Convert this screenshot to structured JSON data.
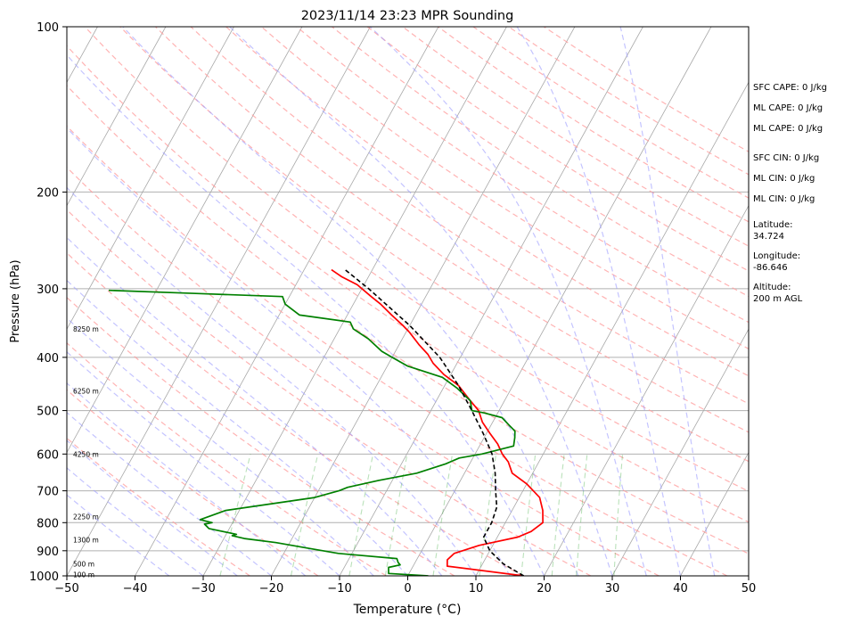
{
  "chart_data": {
    "type": "line",
    "title": "2023/11/14 23:23 MPR Sounding",
    "xlabel": "Temperature (°C)",
    "ylabel": "Pressure (hPa)",
    "xlim": [
      -50,
      50
    ],
    "ylim": [
      1000,
      100
    ],
    "y_scale": "log",
    "grid": true,
    "x_ticks": [
      "−50",
      "−40",
      "−30",
      "−20",
      "−10",
      "0",
      "10",
      "20",
      "30",
      "40",
      "50"
    ],
    "y_ticks": [
      "100",
      "200",
      "300",
      "400",
      "500",
      "600",
      "700",
      "800",
      "900",
      "1000"
    ],
    "height_labels": [
      "8250 m",
      "6250 m",
      "4250 m",
      "2250 m",
      "1300 m",
      "500 m",
      "100 m"
    ],
    "series": [
      {
        "color": "#ff0000",
        "points": [
          {
            "t": 17,
            "p": 1000
          },
          {
            "t": 5,
            "p": 960
          },
          {
            "t": 4.5,
            "p": 935
          },
          {
            "t": 5,
            "p": 910
          },
          {
            "t": 8,
            "p": 880
          },
          {
            "t": 13,
            "p": 850
          },
          {
            "t": 14.5,
            "p": 830
          },
          {
            "t": 15.5,
            "p": 800
          },
          {
            "t": 14.5,
            "p": 760
          },
          {
            "t": 13,
            "p": 720
          },
          {
            "t": 10,
            "p": 680
          },
          {
            "t": 7,
            "p": 650
          },
          {
            "t": 5.5,
            "p": 620
          },
          {
            "t": 4,
            "p": 600
          },
          {
            "t": 2.5,
            "p": 575
          },
          {
            "t": 0.5,
            "p": 550
          },
          {
            "t": -1.5,
            "p": 525
          },
          {
            "t": -3,
            "p": 500
          },
          {
            "t": -5,
            "p": 480
          },
          {
            "t": -8,
            "p": 450
          },
          {
            "t": -11,
            "p": 430
          },
          {
            "t": -13.5,
            "p": 410
          },
          {
            "t": -15,
            "p": 395
          },
          {
            "t": -17,
            "p": 380
          },
          {
            "t": -19.5,
            "p": 360
          },
          {
            "t": -21,
            "p": 350
          },
          {
            "t": -23.5,
            "p": 335
          },
          {
            "t": -26,
            "p": 320
          },
          {
            "t": -28,
            "p": 310
          },
          {
            "t": -31,
            "p": 295
          },
          {
            "t": -34,
            "p": 285
          },
          {
            "t": -36,
            "p": 277
          }
        ]
      },
      {
        "color": "#008000",
        "points": [
          {
            "t": 3,
            "p": 1000
          },
          {
            "t": -3,
            "p": 990
          },
          {
            "t": -3.5,
            "p": 965
          },
          {
            "t": -2,
            "p": 955
          },
          {
            "t": -2.5,
            "p": 945
          },
          {
            "t": -3,
            "p": 930
          },
          {
            "t": -12,
            "p": 910
          },
          {
            "t": -17,
            "p": 890
          },
          {
            "t": -22,
            "p": 870
          },
          {
            "t": -27,
            "p": 855
          },
          {
            "t": -29,
            "p": 845
          },
          {
            "t": -28.5,
            "p": 840
          },
          {
            "t": -33,
            "p": 820
          },
          {
            "t": -34,
            "p": 805
          },
          {
            "t": -33,
            "p": 800
          },
          {
            "t": -35,
            "p": 790
          },
          {
            "t": -32,
            "p": 760
          },
          {
            "t": -26,
            "p": 740
          },
          {
            "t": -20,
            "p": 720
          },
          {
            "t": -17,
            "p": 700
          },
          {
            "t": -16,
            "p": 690
          },
          {
            "t": -12,
            "p": 670
          },
          {
            "t": -7,
            "p": 650
          },
          {
            "t": -3.5,
            "p": 625
          },
          {
            "t": -2,
            "p": 610
          },
          {
            "t": 1,
            "p": 600
          },
          {
            "t": 3,
            "p": 590
          },
          {
            "t": 5,
            "p": 580
          },
          {
            "t": 4.5,
            "p": 560
          },
          {
            "t": 4,
            "p": 545
          },
          {
            "t": 2.5,
            "p": 530
          },
          {
            "t": 1,
            "p": 515
          },
          {
            "t": -2,
            "p": 505
          },
          {
            "t": -4,
            "p": 500
          },
          {
            "t": -5,
            "p": 480
          },
          {
            "t": -8,
            "p": 455
          },
          {
            "t": -11,
            "p": 435
          },
          {
            "t": -17,
            "p": 415
          },
          {
            "t": -20,
            "p": 400
          },
          {
            "t": -22,
            "p": 390
          },
          {
            "t": -25,
            "p": 370
          },
          {
            "t": -28,
            "p": 355
          },
          {
            "t": -29,
            "p": 345
          },
          {
            "t": -37,
            "p": 335
          },
          {
            "t": -40,
            "p": 320
          },
          {
            "t": -41,
            "p": 310
          },
          {
            "t": -54,
            "p": 306
          },
          {
            "t": -67,
            "p": 302
          }
        ]
      },
      {
        "color": "#000000",
        "dash": true,
        "points": [
          {
            "t": 17,
            "p": 1000
          },
          {
            "t": 13,
            "p": 950
          },
          {
            "t": 10,
            "p": 900
          },
          {
            "t": 8,
            "p": 850
          },
          {
            "t": 8,
            "p": 800
          },
          {
            "t": 7.5,
            "p": 750
          },
          {
            "t": 6,
            "p": 700
          },
          {
            "t": 4.5,
            "p": 650
          },
          {
            "t": 2.5,
            "p": 600
          },
          {
            "t": -0.5,
            "p": 550
          },
          {
            "t": -4,
            "p": 500
          },
          {
            "t": -8,
            "p": 450
          },
          {
            "t": -13,
            "p": 400
          },
          {
            "t": -20,
            "p": 350
          },
          {
            "t": -29,
            "p": 300
          },
          {
            "t": -34,
            "p": 277
          }
        ]
      }
    ]
  },
  "sidebar": {
    "sfc_cape": "SFC CAPE: 0 J/kg",
    "ml_cape_1": "ML CAPE: 0 J/kg",
    "ml_cape_2": "ML CAPE: 0 J/kg",
    "sfc_cin": "SFC CIN: 0 J/kg",
    "ml_cin_1": "ML CIN: 0 J/kg",
    "ml_cin_2": "ML CIN: 0 J/kg",
    "latitude": "Latitude:\n34.724",
    "longitude": "Longitude:\n-86.646",
    "altitude": "Altitude:\n200 m AGL"
  }
}
